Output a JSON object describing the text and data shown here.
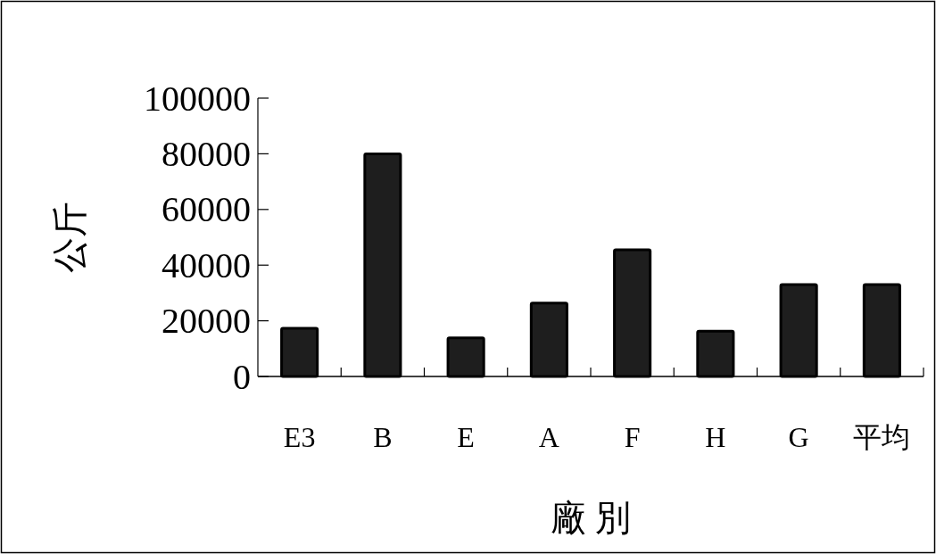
{
  "chart_data": {
    "type": "bar",
    "xlabel": "廠 別",
    "ylabel": "公斤",
    "categories": [
      "E3",
      "B",
      "E",
      "A",
      "F",
      "H",
      "G",
      "平均"
    ],
    "values": [
      17300,
      80000,
      13900,
      26400,
      45500,
      16300,
      33000,
      33000
    ],
    "color": "#1e1e1e",
    "ylim": [
      0,
      100000
    ],
    "yticks": [
      0,
      20000,
      40000,
      60000,
      80000,
      100000
    ]
  }
}
